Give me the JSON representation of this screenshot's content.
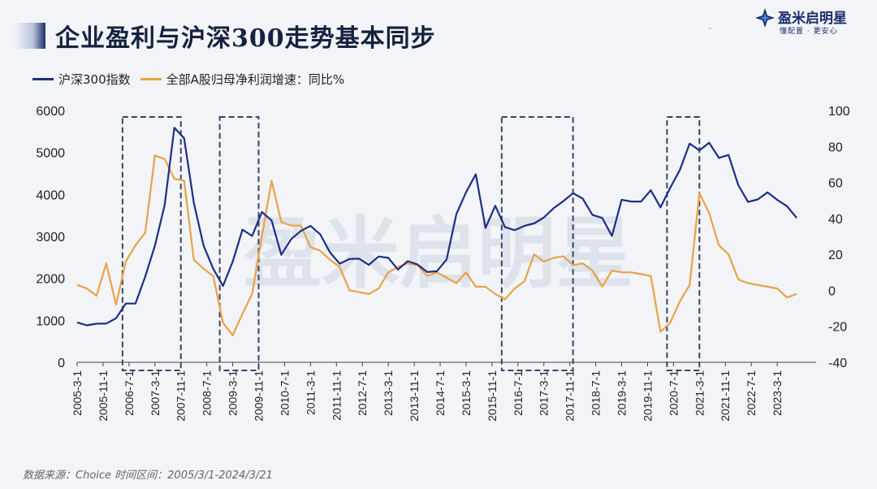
{
  "header": {
    "title": "企业盈利与沪深300走势基本同步"
  },
  "brand": {
    "name": "盈米启明星",
    "slogan": "懂配置 · 更安心",
    "watermark": "盈米启明星",
    "accent_color": "#1b2c6b"
  },
  "source": {
    "note": "数据来源：Choice 时间区间：2005/3/1-2024/3/21"
  },
  "chart_data": {
    "type": "line",
    "colors": {
      "csi300": "#1b2f86",
      "profit_growth": "#e8a346",
      "highlight_box": "#3a4466"
    },
    "series": [
      {
        "name": "沪深300指数",
        "axis": "left"
      },
      {
        "name": "全部A股归母净利润增速：同比%",
        "axis": "right"
      }
    ],
    "y_left": {
      "range": [
        0,
        6000
      ],
      "ticks": [
        "0",
        "1000",
        "2000",
        "3000",
        "4000",
        "5000",
        "6000"
      ]
    },
    "y_right": {
      "range": [
        -40,
        100
      ],
      "ticks": [
        "-40",
        "-20",
        "0",
        "20",
        "40",
        "60",
        "80",
        "100"
      ]
    },
    "x_range": [
      "2005-03",
      "2024-03"
    ],
    "x_ticks": [
      "2005-3-1",
      "2005-11-1",
      "2006-7-1",
      "2007-3-1",
      "2007-11-1",
      "2008-7-1",
      "2009-3-1",
      "2009-11-1",
      "2010-7-1",
      "2011-3-1",
      "2011-11-1",
      "2012-7-1",
      "2013-3-1",
      "2013-11-1",
      "2014-7-1",
      "2015-3-1",
      "2015-11-1",
      "2016-7-1",
      "2017-3-1",
      "2017-11-1",
      "2018-7-1",
      "2019-3-1",
      "2019-11-1",
      "2020-7-1",
      "2021-3-1",
      "2021-11-1",
      "2022-7-1",
      "2023-3-1"
    ],
    "grid": false,
    "legend_position": "top-left",
    "csi300": [
      [
        "2005-03",
        950
      ],
      [
        "2005-06",
        880
      ],
      [
        "2005-09",
        920
      ],
      [
        "2005-12",
        923
      ],
      [
        "2006-03",
        1050
      ],
      [
        "2006-06",
        1400
      ],
      [
        "2006-09",
        1400
      ],
      [
        "2006-12",
        2040
      ],
      [
        "2007-03",
        2780
      ],
      [
        "2007-06",
        3750
      ],
      [
        "2007-09",
        5590
      ],
      [
        "2007-12",
        5340
      ],
      [
        "2008-03",
        3800
      ],
      [
        "2008-06",
        2780
      ],
      [
        "2008-09",
        2230
      ],
      [
        "2008-12",
        1820
      ],
      [
        "2009-03",
        2400
      ],
      [
        "2009-06",
        3160
      ],
      [
        "2009-09",
        3010
      ],
      [
        "2009-12",
        3580
      ],
      [
        "2010-03",
        3380
      ],
      [
        "2010-06",
        2560
      ],
      [
        "2010-09",
        2930
      ],
      [
        "2010-12",
        3130
      ],
      [
        "2011-03",
        3250
      ],
      [
        "2011-06",
        3050
      ],
      [
        "2011-09",
        2620
      ],
      [
        "2011-12",
        2350
      ],
      [
        "2012-03",
        2460
      ],
      [
        "2012-06",
        2470
      ],
      [
        "2012-09",
        2320
      ],
      [
        "2012-12",
        2520
      ],
      [
        "2013-03",
        2490
      ],
      [
        "2013-06",
        2210
      ],
      [
        "2013-09",
        2410
      ],
      [
        "2013-12",
        2330
      ],
      [
        "2014-03",
        2150
      ],
      [
        "2014-06",
        2170
      ],
      [
        "2014-09",
        2450
      ],
      [
        "2014-12",
        3530
      ],
      [
        "2015-03",
        4050
      ],
      [
        "2015-06",
        4480
      ],
      [
        "2015-09",
        3200
      ],
      [
        "2015-12",
        3730
      ],
      [
        "2016-03",
        3220
      ],
      [
        "2016-06",
        3150
      ],
      [
        "2016-09",
        3250
      ],
      [
        "2016-12",
        3310
      ],
      [
        "2017-03",
        3450
      ],
      [
        "2017-06",
        3670
      ],
      [
        "2017-09",
        3840
      ],
      [
        "2017-12",
        4030
      ],
      [
        "2018-03",
        3900
      ],
      [
        "2018-06",
        3510
      ],
      [
        "2018-09",
        3440
      ],
      [
        "2018-12",
        3010
      ],
      [
        "2019-03",
        3870
      ],
      [
        "2019-06",
        3830
      ],
      [
        "2019-09",
        3830
      ],
      [
        "2019-12",
        4100
      ],
      [
        "2020-03",
        3690
      ],
      [
        "2020-06",
        4160
      ],
      [
        "2020-09",
        4590
      ],
      [
        "2020-12",
        5210
      ],
      [
        "2021-03",
        5050
      ],
      [
        "2021-06",
        5230
      ],
      [
        "2021-09",
        4870
      ],
      [
        "2021-12",
        4940
      ],
      [
        "2022-03",
        4220
      ],
      [
        "2022-06",
        3820
      ],
      [
        "2022-09",
        3880
      ],
      [
        "2022-12",
        4050
      ],
      [
        "2023-03",
        3870
      ],
      [
        "2023-06",
        3720
      ],
      [
        "2023-09",
        3440
      ]
    ],
    "profit_growth": [
      [
        "2005-03",
        3
      ],
      [
        "2005-06",
        1
      ],
      [
        "2005-09",
        -3
      ],
      [
        "2005-12",
        15
      ],
      [
        "2006-03",
        -8
      ],
      [
        "2006-06",
        16
      ],
      [
        "2006-09",
        25
      ],
      [
        "2006-12",
        32
      ],
      [
        "2007-03",
        75
      ],
      [
        "2007-06",
        73
      ],
      [
        "2007-09",
        62
      ],
      [
        "2007-12",
        61
      ],
      [
        "2008-03",
        17
      ],
      [
        "2008-06",
        12
      ],
      [
        "2008-09",
        8
      ],
      [
        "2008-12",
        -18
      ],
      [
        "2009-03",
        -25
      ],
      [
        "2009-06",
        -13
      ],
      [
        "2009-09",
        -2
      ],
      [
        "2009-12",
        30
      ],
      [
        "2010-03",
        61
      ],
      [
        "2010-06",
        38
      ],
      [
        "2010-09",
        36
      ],
      [
        "2010-12",
        36
      ],
      [
        "2011-03",
        24
      ],
      [
        "2011-06",
        22
      ],
      [
        "2011-09",
        17
      ],
      [
        "2011-12",
        13
      ],
      [
        "2012-03",
        0
      ],
      [
        "2012-06",
        -1
      ],
      [
        "2012-09",
        -2
      ],
      [
        "2012-12",
        1
      ],
      [
        "2013-03",
        10
      ],
      [
        "2013-06",
        13
      ],
      [
        "2013-09",
        15
      ],
      [
        "2013-12",
        14
      ],
      [
        "2014-03",
        8
      ],
      [
        "2014-06",
        10
      ],
      [
        "2014-09",
        7
      ],
      [
        "2014-12",
        4
      ],
      [
        "2015-03",
        10
      ],
      [
        "2015-06",
        2
      ],
      [
        "2015-09",
        2
      ],
      [
        "2015-12",
        -2
      ],
      [
        "2016-03",
        -5
      ],
      [
        "2016-06",
        1
      ],
      [
        "2016-09",
        5
      ],
      [
        "2016-12",
        20
      ],
      [
        "2017-03",
        16
      ],
      [
        "2017-06",
        18
      ],
      [
        "2017-09",
        19
      ],
      [
        "2017-12",
        14
      ],
      [
        "2018-03",
        15
      ],
      [
        "2018-06",
        11
      ],
      [
        "2018-09",
        2
      ],
      [
        "2018-12",
        11
      ],
      [
        "2019-03",
        10
      ],
      [
        "2019-06",
        10
      ],
      [
        "2019-09",
        9
      ],
      [
        "2019-12",
        8
      ],
      [
        "2020-03",
        -23
      ],
      [
        "2020-06",
        -18
      ],
      [
        "2020-09",
        -6
      ],
      [
        "2020-12",
        3
      ],
      [
        "2021-03",
        54
      ],
      [
        "2021-06",
        43
      ],
      [
        "2021-09",
        25
      ],
      [
        "2021-12",
        20
      ],
      [
        "2022-03",
        6
      ],
      [
        "2022-06",
        4
      ],
      [
        "2022-09",
        3
      ],
      [
        "2022-12",
        2
      ],
      [
        "2023-03",
        1
      ],
      [
        "2023-06",
        -4
      ],
      [
        "2023-09",
        -2
      ]
    ],
    "highlight_periods": [
      [
        "2006-05",
        "2007-11"
      ],
      [
        "2008-11",
        "2009-11"
      ],
      [
        "2016-02",
        "2017-12"
      ],
      [
        "2020-05",
        "2021-03"
      ]
    ]
  }
}
